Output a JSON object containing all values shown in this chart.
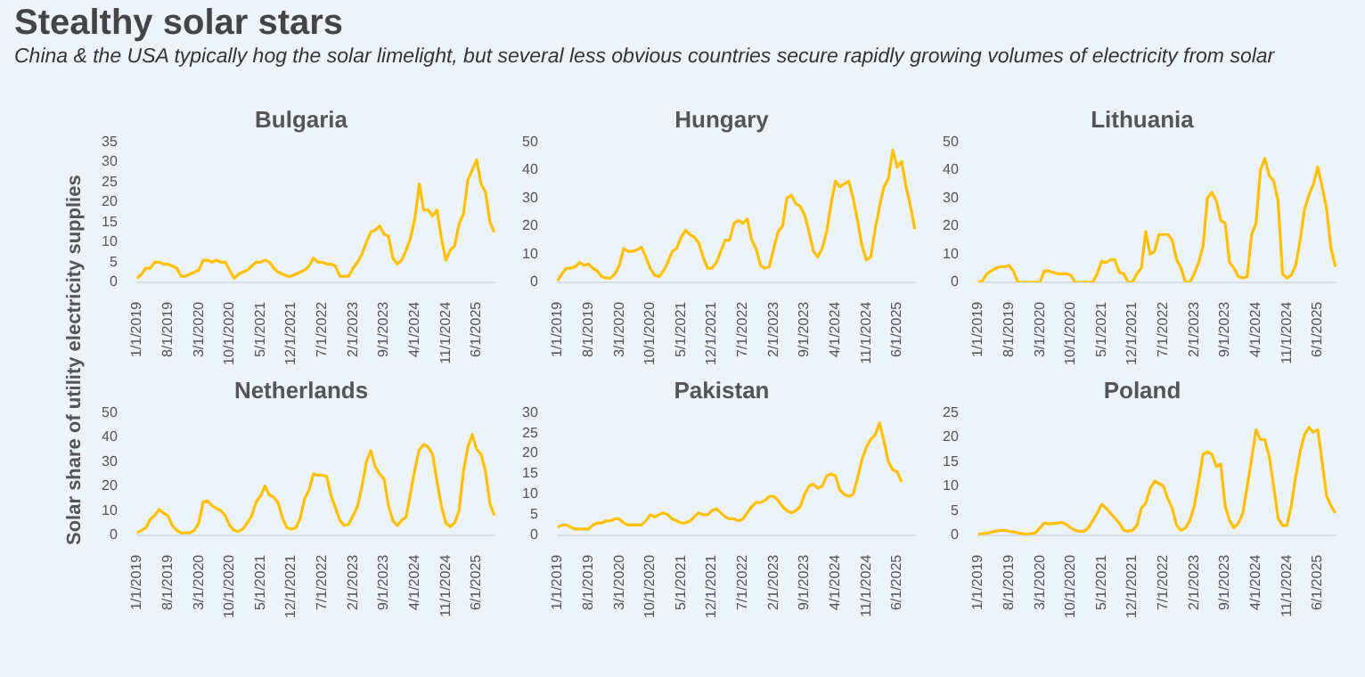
{
  "chart_data": [
    {
      "type": "other",
      "title": "Stealthy solar stars",
      "subtitle": "China & the USA typically hog the solar limelight, but several less obvious countries secure rapidly growing volumes of electricity from solar"
    },
    {
      "type": "line",
      "title": "Bulgaria",
      "ylabel": "Solar share of utility electricity supplies",
      "color": "#ffc000",
      "ylim": [
        0,
        35
      ],
      "yticks": [
        0,
        5,
        10,
        15,
        20,
        25,
        30,
        35
      ],
      "categories": [
        "1/1/2019",
        null,
        null,
        null,
        null,
        null,
        null,
        "8/1/2019",
        null,
        null,
        null,
        null,
        null,
        null,
        "3/1/2020",
        null,
        null,
        null,
        null,
        null,
        null,
        "10/1/2020",
        null,
        null,
        null,
        null,
        null,
        null,
        "5/1/2021",
        null,
        null,
        null,
        null,
        null,
        null,
        "12/1/2021",
        null,
        null,
        null,
        null,
        null,
        null,
        "7/1/2022",
        null,
        null,
        null,
        null,
        null,
        null,
        "2/1/2023",
        null,
        null,
        null,
        null,
        null,
        null,
        "9/1/2023",
        null,
        null,
        null,
        null,
        null,
        null,
        "4/1/2024",
        null,
        null,
        null,
        null,
        null,
        null,
        "11/1/2024",
        null,
        null,
        null,
        null,
        null,
        null,
        "6/1/2025",
        null,
        null,
        null,
        null
      ],
      "values": [
        1,
        2,
        3.5,
        3.5,
        5,
        5,
        4.5,
        4.5,
        4,
        3.5,
        1.5,
        1.5,
        2,
        2.5,
        3,
        5.5,
        5.5,
        5,
        5.5,
        5,
        5,
        3,
        1,
        2,
        2.5,
        3,
        4,
        5,
        5,
        5.5,
        5,
        3.5,
        2.5,
        2,
        1.5,
        1.5,
        2,
        2.5,
        3,
        4,
        6,
        5,
        5,
        4.5,
        4.5,
        4,
        1.5,
        1.5,
        1.5,
        3.5,
        5,
        7,
        10,
        12.5,
        13,
        14,
        12,
        11.5,
        6,
        4.5,
        5.5,
        8,
        11,
        16,
        24.5,
        18,
        18,
        16.5,
        18,
        11,
        5.5,
        8,
        9,
        14.5,
        17,
        25.5,
        28,
        30.5,
        24.5,
        22.5,
        15,
        12.5
      ]
    },
    {
      "type": "line",
      "title": "Hungary",
      "color": "#ffc000",
      "ylim": [
        0,
        50
      ],
      "yticks": [
        0,
        10,
        20,
        30,
        40,
        50
      ],
      "categories": [
        "1/1/2019",
        null,
        null,
        null,
        null,
        null,
        null,
        "8/1/2019",
        null,
        null,
        null,
        null,
        null,
        null,
        "3/1/2020",
        null,
        null,
        null,
        null,
        null,
        null,
        "10/1/2020",
        null,
        null,
        null,
        null,
        null,
        null,
        "5/1/2021",
        null,
        null,
        null,
        null,
        null,
        null,
        "12/1/2021",
        null,
        null,
        null,
        null,
        null,
        null,
        "7/1/2022",
        null,
        null,
        null,
        null,
        null,
        null,
        "2/1/2023",
        null,
        null,
        null,
        null,
        null,
        null,
        "9/1/2023",
        null,
        null,
        null,
        null,
        null,
        null,
        "4/1/2024",
        null,
        null,
        null,
        null,
        null,
        null,
        "11/1/2024",
        null,
        null,
        null,
        null,
        null,
        null,
        "6/1/2025",
        null,
        null,
        null,
        null
      ],
      "values": [
        0.5,
        3,
        5,
        5,
        5.5,
        7,
        6,
        6.5,
        5,
        4,
        2,
        1.5,
        1.5,
        3,
        6,
        12,
        11,
        11,
        11.5,
        12.5,
        9,
        5,
        2.5,
        2,
        4,
        7,
        11,
        12,
        16,
        18.5,
        17,
        16,
        14,
        9,
        5,
        5,
        7,
        11,
        15,
        15,
        21,
        22,
        21,
        22.5,
        15,
        12,
        6,
        5,
        5.5,
        12,
        18,
        20,
        30,
        31,
        28,
        27,
        24,
        18,
        11,
        9,
        12,
        18,
        28,
        36,
        34,
        35,
        36,
        30,
        22,
        13,
        8,
        9,
        19,
        27,
        34,
        37,
        47,
        41,
        43,
        34,
        27,
        19
      ]
    },
    {
      "type": "line",
      "title": "Lithuania",
      "color": "#ffc000",
      "ylim": [
        0,
        50
      ],
      "yticks": [
        0,
        10,
        20,
        30,
        40,
        50
      ],
      "categories": [
        "1/1/2019",
        null,
        null,
        null,
        null,
        null,
        null,
        "8/1/2019",
        null,
        null,
        null,
        null,
        null,
        null,
        "3/1/2020",
        null,
        null,
        null,
        null,
        null,
        null,
        "10/1/2020",
        null,
        null,
        null,
        null,
        null,
        null,
        "5/1/2021",
        null,
        null,
        null,
        null,
        null,
        null,
        "12/1/2021",
        null,
        null,
        null,
        null,
        null,
        null,
        "7/1/2022",
        null,
        null,
        null,
        null,
        null,
        null,
        "2/1/2023",
        null,
        null,
        null,
        null,
        null,
        null,
        "9/1/2023",
        null,
        null,
        null,
        null,
        null,
        null,
        "4/1/2024",
        null,
        null,
        null,
        null,
        null,
        null,
        "11/1/2024",
        null,
        null,
        null,
        null,
        null,
        null,
        "6/1/2025",
        null,
        null,
        null,
        null
      ],
      "values": [
        0,
        0.5,
        3,
        4,
        5,
        5.5,
        5.5,
        6,
        4,
        0,
        0,
        0,
        0,
        0,
        0,
        4,
        4,
        3.5,
        3,
        3,
        3,
        2.5,
        0,
        0,
        0,
        0,
        0,
        3,
        7.5,
        7,
        8,
        8,
        3.5,
        3,
        0,
        0,
        3,
        5,
        18,
        10,
        11,
        17,
        17,
        17,
        15,
        8,
        5,
        0,
        0,
        3,
        7,
        13,
        30,
        32,
        29,
        22,
        21,
        7,
        5,
        2,
        1.5,
        2,
        17,
        21,
        40,
        44,
        38,
        36,
        29,
        3,
        1.5,
        2.5,
        6,
        15,
        26,
        31,
        35,
        41,
        34,
        26,
        12,
        5.5
      ]
    },
    {
      "type": "line",
      "title": "Netherlands",
      "color": "#ffc000",
      "ylim": [
        0,
        50
      ],
      "yticks": [
        0,
        10,
        20,
        30,
        40,
        50
      ],
      "categories": [
        "1/1/2019",
        null,
        null,
        null,
        null,
        null,
        null,
        "8/1/2019",
        null,
        null,
        null,
        null,
        null,
        null,
        "3/1/2020",
        null,
        null,
        null,
        null,
        null,
        null,
        "10/1/2020",
        null,
        null,
        null,
        null,
        null,
        null,
        "5/1/2021",
        null,
        null,
        null,
        null,
        null,
        null,
        "12/1/2021",
        null,
        null,
        null,
        null,
        null,
        null,
        "7/1/2022",
        null,
        null,
        null,
        null,
        null,
        null,
        "2/1/2023",
        null,
        null,
        null,
        null,
        null,
        null,
        "9/1/2023",
        null,
        null,
        null,
        null,
        null,
        null,
        "4/1/2024",
        null,
        null,
        null,
        null,
        null,
        null,
        "11/1/2024",
        null,
        null,
        null,
        null,
        null,
        null,
        "6/1/2025",
        null,
        null,
        null,
        null
      ],
      "values": [
        1,
        2,
        3,
        6.5,
        8,
        10.5,
        9,
        8,
        4,
        2,
        1,
        1,
        1,
        2,
        5,
        13.5,
        14,
        12,
        11,
        10,
        8,
        4,
        2,
        1.5,
        2.5,
        5,
        8,
        13.5,
        16,
        20,
        16.5,
        15.5,
        13,
        7,
        3,
        2.5,
        3,
        7,
        15,
        18.5,
        25,
        24.5,
        24.5,
        24,
        16,
        11,
        6,
        4,
        4.5,
        8,
        12,
        20,
        30,
        34.5,
        28,
        25,
        23,
        12,
        6,
        4,
        6,
        7.5,
        17,
        27,
        35,
        37,
        36,
        33,
        22,
        12,
        5,
        3.5,
        5,
        10,
        26,
        36,
        41,
        35,
        33,
        26,
        13,
        8
      ]
    },
    {
      "type": "line",
      "title": "Pakistan",
      "color": "#ffc000",
      "ylim": [
        0,
        30
      ],
      "yticks": [
        0,
        5,
        10,
        15,
        20,
        25,
        30
      ],
      "categories": [
        "1/1/2019",
        null,
        null,
        null,
        null,
        null,
        null,
        "8/1/2019",
        null,
        null,
        null,
        null,
        null,
        null,
        "3/1/2020",
        null,
        null,
        null,
        null,
        null,
        null,
        "10/1/2020",
        null,
        null,
        null,
        null,
        null,
        null,
        "5/1/2021",
        null,
        null,
        null,
        null,
        null,
        null,
        "12/1/2021",
        null,
        null,
        null,
        null,
        null,
        null,
        "7/1/2022",
        null,
        null,
        null,
        null,
        null,
        null,
        "2/1/2023",
        null,
        null,
        null,
        null,
        null,
        null,
        "9/1/2023",
        null,
        null,
        null,
        null,
        null,
        null,
        "4/1/2024",
        null,
        null,
        null,
        null,
        null,
        null,
        "11/1/2024",
        null,
        null,
        null,
        null,
        null,
        null,
        "6/1/2025",
        null,
        null,
        null,
        null
      ],
      "values": [
        2,
        2.5,
        2.5,
        2,
        1.5,
        1.5,
        1.5,
        1.5,
        2.5,
        3,
        3,
        3.5,
        3.5,
        4,
        4,
        3,
        2.5,
        2.5,
        2.5,
        2.5,
        3.5,
        5,
        4.5,
        5,
        5.5,
        5,
        4,
        3.5,
        3,
        3,
        3.5,
        4.5,
        5.5,
        5,
        5,
        6,
        6.5,
        5.5,
        4.5,
        4,
        4,
        3.5,
        4,
        5.5,
        7,
        8,
        8,
        8.5,
        9.5,
        9.5,
        8.5,
        7,
        6,
        5.5,
        6,
        7,
        10,
        12,
        12.5,
        11.5,
        12,
        14.5,
        15,
        14.5,
        11,
        10,
        9.5,
        10,
        14,
        18.5,
        21.5,
        23.5,
        24.5,
        27.5,
        23,
        18,
        16,
        15.5,
        13,
        null,
        null,
        null
      ]
    },
    {
      "type": "line",
      "title": "Poland",
      "color": "#ffc000",
      "ylim": [
        0,
        25
      ],
      "yticks": [
        0,
        5,
        10,
        15,
        20,
        25
      ],
      "categories": [
        "1/1/2019",
        null,
        null,
        null,
        null,
        null,
        null,
        "8/1/2019",
        null,
        null,
        null,
        null,
        null,
        null,
        "3/1/2020",
        null,
        null,
        null,
        null,
        null,
        null,
        "10/1/2020",
        null,
        null,
        null,
        null,
        null,
        null,
        "5/1/2021",
        null,
        null,
        null,
        null,
        null,
        null,
        "12/1/2021",
        null,
        null,
        null,
        null,
        null,
        null,
        "7/1/2022",
        null,
        null,
        null,
        null,
        null,
        null,
        "2/1/2023",
        null,
        null,
        null,
        null,
        null,
        null,
        "9/1/2023",
        null,
        null,
        null,
        null,
        null,
        null,
        "4/1/2024",
        null,
        null,
        null,
        null,
        null,
        null,
        "11/1/2024",
        null,
        null,
        null,
        null,
        null,
        null,
        "6/1/2025",
        null,
        null,
        null,
        null
      ],
      "values": [
        0.2,
        0.3,
        0.4,
        0.6,
        0.8,
        1,
        1,
        0.8,
        0.7,
        0.5,
        0.3,
        0.2,
        0.3,
        0.5,
        1.5,
        2.5,
        2.3,
        2.4,
        2.5,
        2.6,
        2.2,
        1.5,
        1,
        0.8,
        0.8,
        1.5,
        3,
        4.5,
        6.3,
        5.5,
        4.5,
        3.5,
        2.5,
        1,
        0.8,
        1,
        2,
        5.5,
        6.5,
        9.5,
        11,
        10.5,
        10,
        7.5,
        5.5,
        2,
        1,
        1.5,
        3,
        6,
        11,
        16.5,
        17,
        16.5,
        14,
        14.5,
        6,
        3,
        1.5,
        2.5,
        4.5,
        10,
        15.5,
        21.5,
        19.5,
        19.5,
        16,
        10,
        3.5,
        2,
        2,
        6,
        12,
        17,
        20.5,
        22,
        21,
        21.5,
        15,
        8,
        6,
        4.5
      ]
    }
  ]
}
